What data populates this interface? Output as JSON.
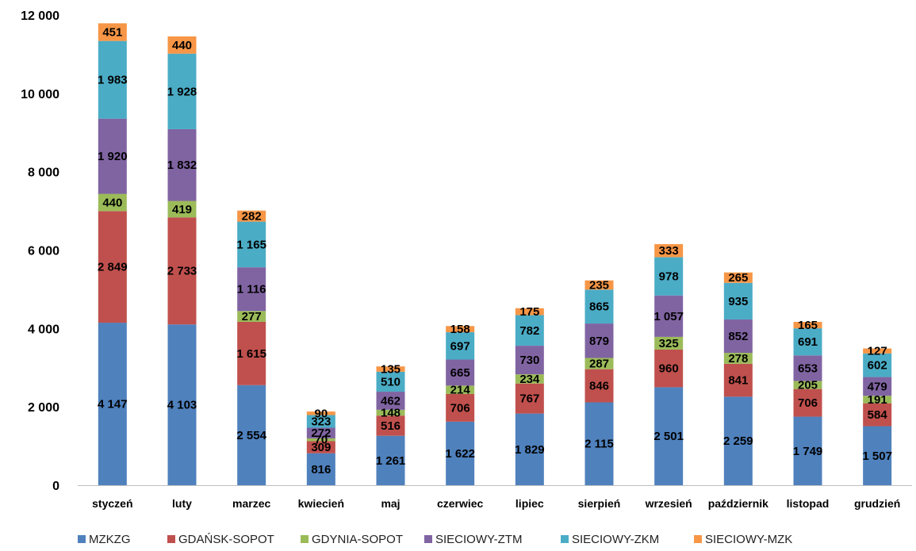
{
  "chart_data": {
    "type": "bar",
    "stacked": true,
    "title": "",
    "xlabel": "",
    "ylabel": "",
    "ylim": [
      0,
      12000
    ],
    "yticks": [
      0,
      2000,
      4000,
      6000,
      8000,
      10000,
      12000
    ],
    "ytick_labels": [
      "0",
      "2 000",
      "4 000",
      "6 000",
      "8 000",
      "10 000",
      "12 000"
    ],
    "grid": false,
    "legend_position": "bottom",
    "categories": [
      "styczeń",
      "luty",
      "marzec",
      "kwiecień",
      "maj",
      "czerwiec",
      "lipiec",
      "sierpień",
      "wrzesień",
      "październik",
      "listopad",
      "grudzień"
    ],
    "series": [
      {
        "name": "MZKZG",
        "color": "#4F81BD",
        "values": [
          4147,
          4103,
          2554,
          816,
          1261,
          1622,
          1829,
          2115,
          2501,
          2259,
          1749,
          1507
        ],
        "labels": [
          "4 147",
          "4 103",
          "2 554",
          "816",
          "1 261",
          "1 622",
          "1 829",
          "2 115",
          "2 501",
          "2 259",
          "1 749",
          "1 507"
        ]
      },
      {
        "name": "GDAŃSK-SOPOT",
        "color": "#C0504D",
        "values": [
          2849,
          2733,
          1615,
          309,
          516,
          706,
          767,
          846,
          960,
          841,
          706,
          584
        ],
        "labels": [
          "2 849",
          "2 733",
          "1 615",
          "309",
          "516",
          "706",
          "767",
          "846",
          "960",
          "841",
          "706",
          "584"
        ]
      },
      {
        "name": "GDYNIA-SOPOT",
        "color": "#9BBB59",
        "values": [
          440,
          419,
          277,
          70,
          148,
          214,
          234,
          287,
          325,
          278,
          205,
          191
        ],
        "labels": [
          "440",
          "419",
          "277",
          "70",
          "148",
          "214",
          "234",
          "287",
          "325",
          "278",
          "205",
          "191"
        ]
      },
      {
        "name": "SIECIOWY-ZTM",
        "color": "#8064A2",
        "values": [
          1920,
          1832,
          1116,
          272,
          462,
          665,
          730,
          879,
          1057,
          852,
          653,
          479
        ],
        "labels": [
          "1 920",
          "1 832",
          "1 116",
          "272",
          "462",
          "665",
          "730",
          "879",
          "1 057",
          "852",
          "653",
          "479"
        ]
      },
      {
        "name": "SIECIOWY-ZKM",
        "color": "#4BACC6",
        "values": [
          1983,
          1928,
          1165,
          323,
          510,
          697,
          782,
          865,
          978,
          935,
          691,
          602
        ],
        "labels": [
          "1 983",
          "1 928",
          "1 165",
          "323",
          "510",
          "697",
          "782",
          "865",
          "978",
          "935",
          "691",
          "602"
        ]
      },
      {
        "name": "SIECIOWY-MZK",
        "color": "#F79646",
        "values": [
          451,
          440,
          282,
          90,
          135,
          158,
          175,
          235,
          333,
          265,
          165,
          127
        ],
        "labels": [
          "451",
          "440",
          "282",
          "90",
          "135",
          "158",
          "175",
          "235",
          "333",
          "265",
          "165",
          "127"
        ]
      }
    ]
  }
}
